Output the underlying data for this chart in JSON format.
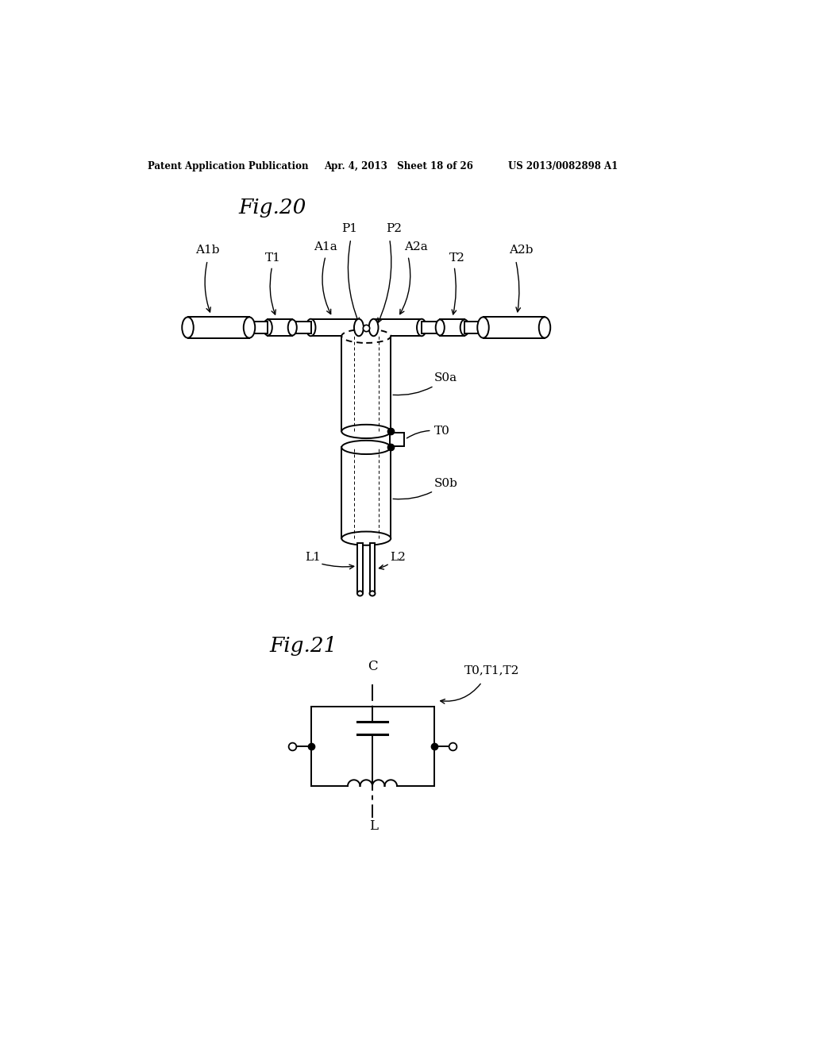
{
  "bg_color": "#ffffff",
  "fig_width": 10.24,
  "fig_height": 13.2,
  "header_left": "Patent Application Publication",
  "header_mid": "Apr. 4, 2013   Sheet 18 of 26",
  "header_right": "US 2013/0082898 A1",
  "fig20_label": "Fig.20",
  "fig21_label": "Fig.21"
}
